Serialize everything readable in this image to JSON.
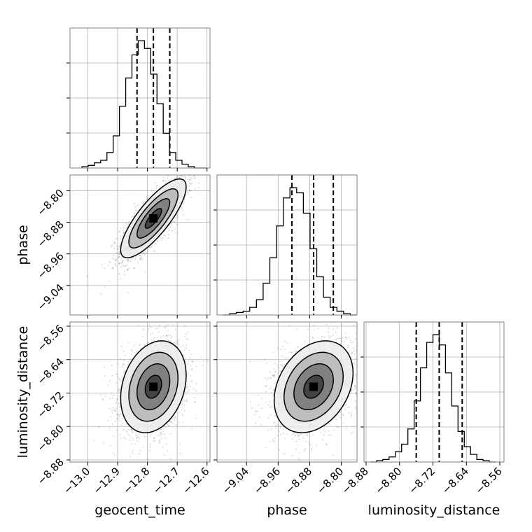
{
  "chart_data": {
    "type": "corner",
    "parameters": [
      "geocent_time",
      "phase",
      "luminosity_distance"
    ],
    "ticks": {
      "geocent_time": [
        "−13.0",
        "−12.9",
        "−12.8",
        "−12.7",
        "−12.6"
      ],
      "phase": [
        "−9.04",
        "−8.96",
        "−8.88",
        "−8.80"
      ],
      "luminosity_distance": [
        "−8.88",
        "−8.80",
        "−8.72",
        "−8.64",
        "−8.56"
      ]
    },
    "ranges": {
      "geocent_time": [
        -13.06,
        -12.59
      ],
      "phase": [
        -9.115,
        -8.76
      ],
      "luminosity_distance": [
        -8.885,
        -8.55
      ]
    },
    "medians": {
      "geocent_time": -12.78,
      "phase": -8.87,
      "luminosity_distance": -8.705
    },
    "quantiles": {
      "geocent_time": [
        -12.835,
        -12.78,
        -12.725
      ],
      "phase": [
        -8.925,
        -8.87,
        -8.82
      ],
      "luminosity_distance": [
        -8.76,
        -8.705,
        -8.65
      ]
    },
    "sigma": {
      "geocent_time": 0.055,
      "phase": 0.05,
      "luminosity_distance": 0.055
    },
    "correlation": {
      "phase|geocent_time": 0.8,
      "luminosity_distance|geocent_time": 0.25,
      "luminosity_distance|phase": 0.3
    },
    "histograms": {
      "geocent_time": {
        "edges": [
          -13.02,
          -12.6
        ],
        "counts": [
          1,
          2,
          4,
          6,
          12,
          25,
          48,
          70,
          88,
          99,
          93,
          73,
          50,
          27,
          12,
          6,
          3,
          1,
          0,
          0
        ]
      },
      "phase": {
        "edges": [
          -9.1,
          -8.76
        ],
        "counts": [
          0,
          1,
          2,
          3,
          6,
          12,
          25,
          45,
          70,
          92,
          100,
          96,
          80,
          52,
          30,
          14,
          6,
          3,
          1,
          0
        ]
      },
      "luminosity_distance": {
        "edges": [
          -8.87,
          -8.57
        ],
        "counts": [
          0,
          1,
          2,
          4,
          8,
          14,
          26,
          48,
          74,
          94,
          100,
          92,
          70,
          44,
          24,
          12,
          6,
          2,
          1,
          0
        ]
      }
    },
    "grid": true
  }
}
